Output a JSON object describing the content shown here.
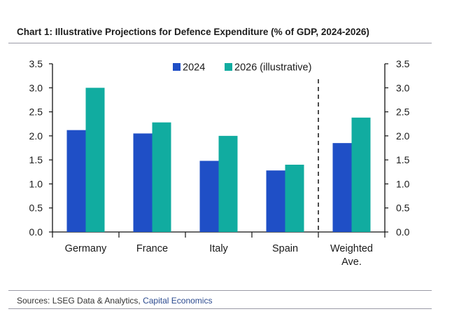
{
  "chart_title": "Chart 1: Illustrative Projections for Defence Expenditure (% of GDP, 2024-2026)",
  "sources": {
    "prefix": "Sources: LSEG Data & Analytics, ",
    "link": "Capital Economics"
  },
  "colors": {
    "2024": "#1f4fc6",
    "2026": "#11aca0"
  },
  "chart_data": {
    "type": "bar",
    "categories": [
      "Germany",
      "France",
      "Italy",
      "Spain",
      "Weighted Ave."
    ],
    "category_label_lines": [
      [
        "Germany"
      ],
      [
        "France"
      ],
      [
        "Italy"
      ],
      [
        "Spain"
      ],
      [
        "Weighted",
        "Ave."
      ]
    ],
    "series": [
      {
        "name": "2024",
        "values": [
          2.12,
          2.05,
          1.48,
          1.28,
          1.85
        ]
      },
      {
        "name": "2026 (illustrative)",
        "values": [
          3.0,
          2.28,
          2.0,
          1.4,
          2.38
        ]
      }
    ],
    "ylim": [
      0,
      3.5
    ],
    "yticks": [
      "0.0",
      "0.5",
      "1.0",
      "1.5",
      "2.0",
      "2.5",
      "3.0",
      "3.5"
    ],
    "secondary_yticks": [
      "0.0",
      "0.5",
      "1.0",
      "1.5",
      "2.0",
      "2.5",
      "3.0",
      "3.5"
    ],
    "separator_after_category": "Spain",
    "legend_position": "top-center",
    "grid": false
  }
}
